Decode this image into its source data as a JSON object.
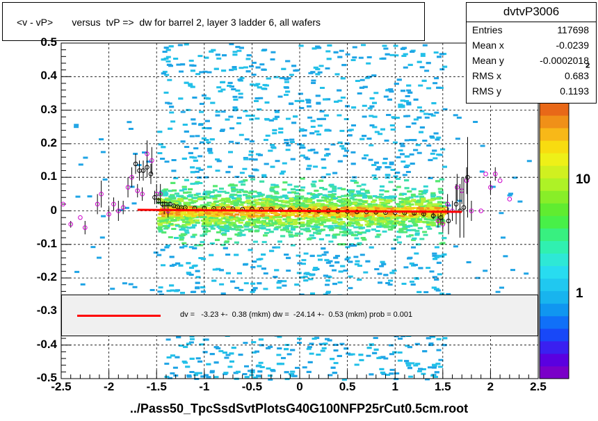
{
  "title": "<v - vP>       versus  tvP =>  dw for barrel 2, layer 3 ladder 6, all wafers",
  "footer": "../Pass50_TpcSsdSvtPlotsG40G100NFP25rCut0.5cm.root",
  "stats": {
    "name": "dvtvP3006",
    "rows": [
      {
        "key": "Entries",
        "value": "117698"
      },
      {
        "key": "Mean x",
        "value": "-0.0239"
      },
      {
        "key": "Mean y",
        "value": "-0.0002018"
      },
      {
        "key": "RMS x",
        "value": "0.683"
      },
      {
        "key": "RMS y",
        "value": "0.1193"
      }
    ]
  },
  "fit_text": "dv =   -3.23 +-  0.38 (mkm) dw =  -24.14 +-  0.53 (mkm) prob = 0.001",
  "colors": {
    "fit_line": "#ff0000",
    "profile_black": "#000000",
    "profile_magenta": "#cc00cc"
  },
  "chart_data": {
    "type": "heatmap",
    "title": "<v - vP>       versus  tvP =>  dw for barrel 2, layer 3 ladder 6, all wafers",
    "xlabel": "",
    "ylabel": "",
    "xlim": [
      -2.5,
      2.5
    ],
    "ylim": [
      -0.5,
      0.5
    ],
    "x_ticks": [
      "-2.5",
      "-2",
      "-1.5",
      "-1",
      "-0.5",
      "0",
      "0.5",
      "1",
      "1.5",
      "2",
      "2.5"
    ],
    "y_ticks": [
      "-0.5",
      "-0.4",
      "-0.3",
      "-0.2",
      "-0.1",
      "0",
      "0.1",
      "0.2",
      "0.3",
      "0.4",
      "0.5"
    ],
    "z_scale": "log",
    "z_ticks": [
      "1",
      "10"
    ],
    "z_top_label": "²",
    "grid": true,
    "profile_black": {
      "x": [
        -1.72,
        -1.68,
        -1.64,
        -1.6,
        -1.56,
        -1.52,
        -1.48,
        -1.44,
        -1.4,
        -1.36,
        -1.32,
        -1.28,
        -1.24,
        -1.2,
        -1.1,
        -1.0,
        -0.9,
        -0.8,
        -0.7,
        -0.6,
        -0.5,
        -0.4,
        -0.3,
        -0.2,
        -0.1,
        0.0,
        0.1,
        0.2,
        0.3,
        0.4,
        0.5,
        0.6,
        0.7,
        0.8,
        0.9,
        1.0,
        1.1,
        1.2,
        1.3,
        1.4,
        1.48,
        1.56,
        1.64,
        1.68,
        1.72,
        1.76
      ],
      "y": [
        0.14,
        0.12,
        0.12,
        0.13,
        0.11,
        0.04,
        0.03,
        0.02,
        0.02,
        0.02,
        0.015,
        0.012,
        0.01,
        0.01,
        0.008,
        0.008,
        0.007,
        0.006,
        0.006,
        0.005,
        0.005,
        0.004,
        0.004,
        0.003,
        0.003,
        0.002,
        0.001,
        0.0,
        0.0,
        -0.001,
        -0.002,
        -0.003,
        -0.003,
        -0.004,
        -0.005,
        -0.005,
        -0.006,
        -0.007,
        -0.01,
        -0.015,
        -0.02,
        -0.03,
        0.02,
        0.0,
        0.01,
        0.1
      ],
      "err": [
        0.03,
        0.03,
        0.03,
        0.03,
        0.03,
        0.02,
        0.01,
        0.008,
        0.006,
        0.005,
        0.004,
        0.003,
        0.003,
        0.002,
        0.002,
        0.002,
        0.002,
        0.002,
        0.002,
        0.002,
        0.002,
        0.002,
        0.002,
        0.002,
        0.002,
        0.002,
        0.002,
        0.002,
        0.002,
        0.002,
        0.002,
        0.002,
        0.002,
        0.002,
        0.002,
        0.002,
        0.003,
        0.004,
        0.006,
        0.01,
        0.02,
        0.04,
        0.06,
        0.08,
        0.09,
        0.12
      ]
    },
    "profile_magenta": {
      "x": [
        -2.48,
        -2.4,
        -2.3,
        -2.25,
        -2.12,
        -2.08,
        -2.0,
        -1.95,
        -1.9,
        -1.85,
        -1.8,
        -1.76,
        -1.7,
        -1.65,
        -1.6,
        -1.55,
        -1.5,
        -1.46,
        -1.42,
        -1.38,
        1.45,
        1.5,
        1.55,
        1.6,
        1.65,
        1.7,
        1.75,
        1.8,
        1.9,
        1.95,
        2.0,
        2.05,
        2.1,
        2.2
      ],
      "y": [
        0.02,
        -0.04,
        -0.02,
        -0.05,
        0.02,
        0.05,
        -0.01,
        0.02,
        0.0,
        0.01,
        0.07,
        0.1,
        0.06,
        0.05,
        0.17,
        0.15,
        0.05,
        0.05,
        0.01,
        0.0,
        -0.03,
        -0.04,
        0.02,
        0.0,
        0.07,
        0.06,
        0.09,
        0.0,
        0.0,
        0.11,
        0.07,
        0.11,
        0.09,
        0.035
      ],
      "err": [
        0.0,
        0.01,
        0.0,
        0.02,
        0.03,
        0.04,
        0.02,
        0.02,
        0.03,
        0.02,
        0.03,
        0.03,
        0.02,
        0.02,
        0.04,
        0.04,
        0.03,
        0.03,
        0.02,
        0.02,
        0.02,
        0.02,
        0.03,
        0.03,
        0.04,
        0.04,
        0.04,
        0.03,
        0.0,
        0.0,
        0.02,
        0.02,
        0.0,
        0.0
      ]
    },
    "fit_line": {
      "x": [
        -1.7,
        1.7
      ],
      "y": [
        0.003,
        -0.003
      ]
    }
  }
}
